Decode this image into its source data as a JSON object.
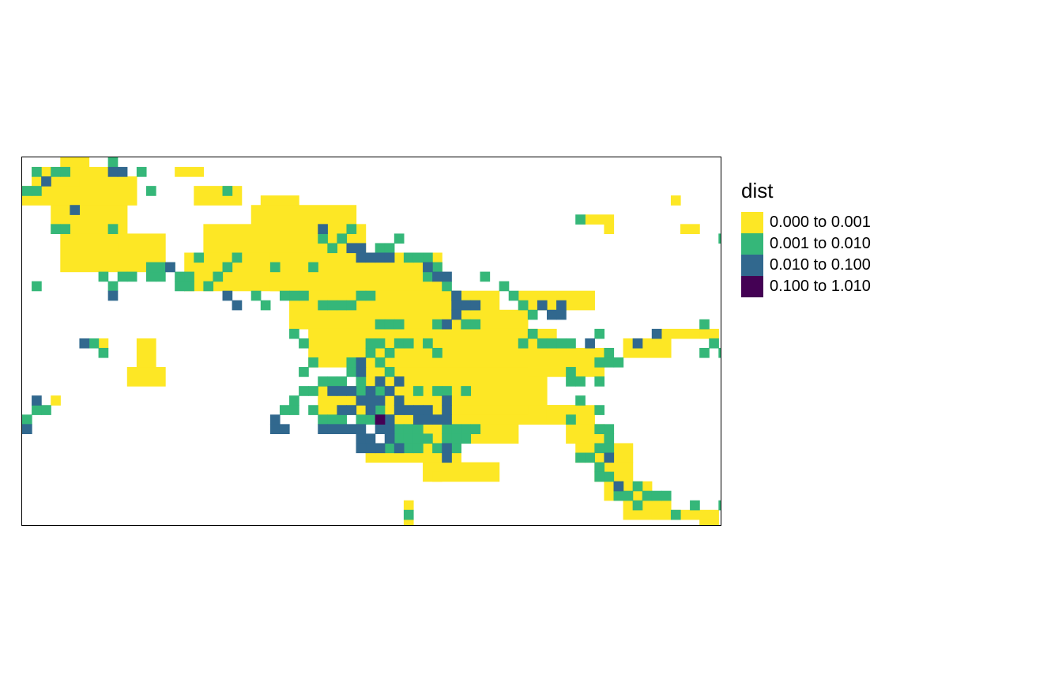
{
  "legend": {
    "title": "dist",
    "items": [
      {
        "label": "0.000 to 0.001",
        "color": "#FDE725"
      },
      {
        "label": "0.001 to 0.010",
        "color": "#35B779"
      },
      {
        "label": "0.010 to 0.100",
        "color": "#31688E"
      },
      {
        "label": "0.100 to 1.010",
        "color": "#440154"
      }
    ]
  }
}
